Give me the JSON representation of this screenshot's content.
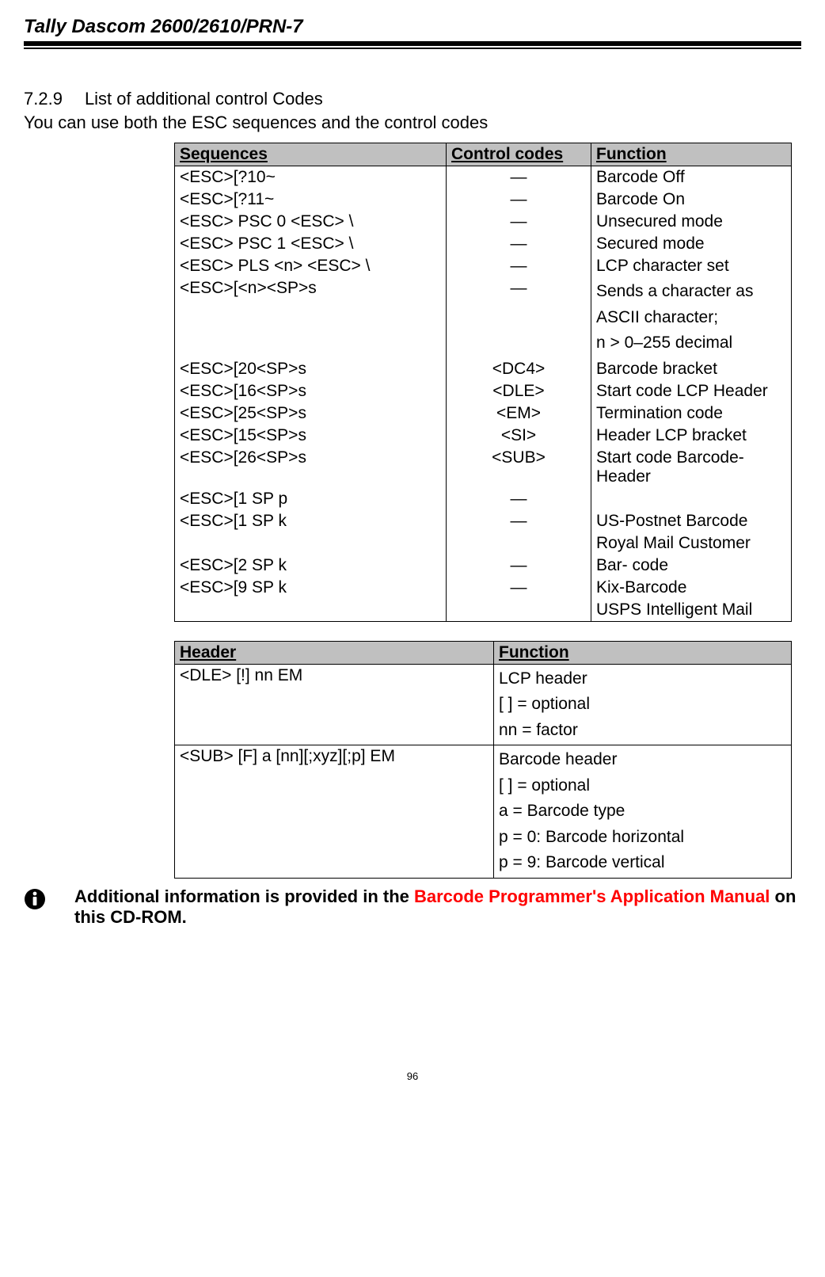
{
  "doc": {
    "title": "Tally Dascom 2600/2610/PRN-7",
    "page_number": "96"
  },
  "section": {
    "number": "7.2.9",
    "title": "List of additional control Codes",
    "intro": "You can use both the ESC sequences and the control codes"
  },
  "table1": {
    "headers": {
      "seq": "Sequences",
      "ctrl": "Control codes",
      "func": "Function"
    },
    "rows": [
      {
        "seq": "<ESC>[?10~",
        "ctrl": "—",
        "func": "Barcode Off"
      },
      {
        "seq": "<ESC>[?11~",
        "ctrl": "—",
        "func": "Barcode On"
      },
      {
        "seq": "<ESC> PSC 0 <ESC> \\",
        "ctrl": "—",
        "func": "Unsecured mode"
      },
      {
        "seq": "<ESC> PSC 1 <ESC> \\",
        "ctrl": "—",
        "func": "Secured mode"
      },
      {
        "seq": "<ESC> PLS <n> <ESC> \\",
        "ctrl": "—",
        "func": "LCP character set"
      },
      {
        "seq": "<ESC>[<n><SP>s",
        "ctrl": "—",
        "func": "Sends a character as ASCII character;\nn > 0–255 decimal"
      },
      {
        "seq": "<ESC>[20<SP>s",
        "ctrl": "<DC4>",
        "func": "Barcode bracket"
      },
      {
        "seq": "<ESC>[16<SP>s",
        "ctrl": "<DLE>",
        "func": "Start code LCP Header"
      },
      {
        "seq": "<ESC>[25<SP>s",
        "ctrl": "<EM>",
        "func": "Termination code"
      },
      {
        "seq": "<ESC>[15<SP>s",
        "ctrl": "<SI>",
        "func": "Header LCP bracket"
      },
      {
        "seq": "<ESC>[26<SP>s",
        "ctrl": "<SUB>",
        "func": "Start code Barcode-Header"
      },
      {
        "seq": "<ESC>[1 SP p",
        "ctrl": "—",
        "func": ""
      },
      {
        "seq": "<ESC>[1 SP k",
        "ctrl": "—",
        "func": "US-Postnet Barcode"
      },
      {
        "seq": "",
        "ctrl": "",
        "func": "Royal Mail Customer"
      },
      {
        "seq": "<ESC>[2 SP k",
        "ctrl": "—",
        "func": "Bar- code"
      },
      {
        "seq": "<ESC>[9 SP k",
        "ctrl": "—",
        "func": "Kix-Barcode"
      },
      {
        "seq": "",
        "ctrl": "",
        "func": "USPS Intelligent Mail"
      }
    ]
  },
  "table2": {
    "headers": {
      "hdr": "Header",
      "func": "Function"
    },
    "rows": [
      {
        "hdr": "<DLE> [!] nn EM",
        "func_lines": [
          "LCP header",
          "[ ] = optional",
          "nn = factor"
        ]
      },
      {
        "hdr": "<SUB> [F] a [nn][;xyz][;p] EM",
        "func_lines": [
          "Barcode header",
          "[ ] = optional",
          "a = Barcode type",
          "p = 0: Barcode horizontal",
          "p = 9: Barcode vertical"
        ]
      }
    ]
  },
  "note": {
    "prefix": "Additional information is provided in the ",
    "link": "Barcode Programmer's Application Manual",
    "suffix": " on this CD-ROM."
  }
}
